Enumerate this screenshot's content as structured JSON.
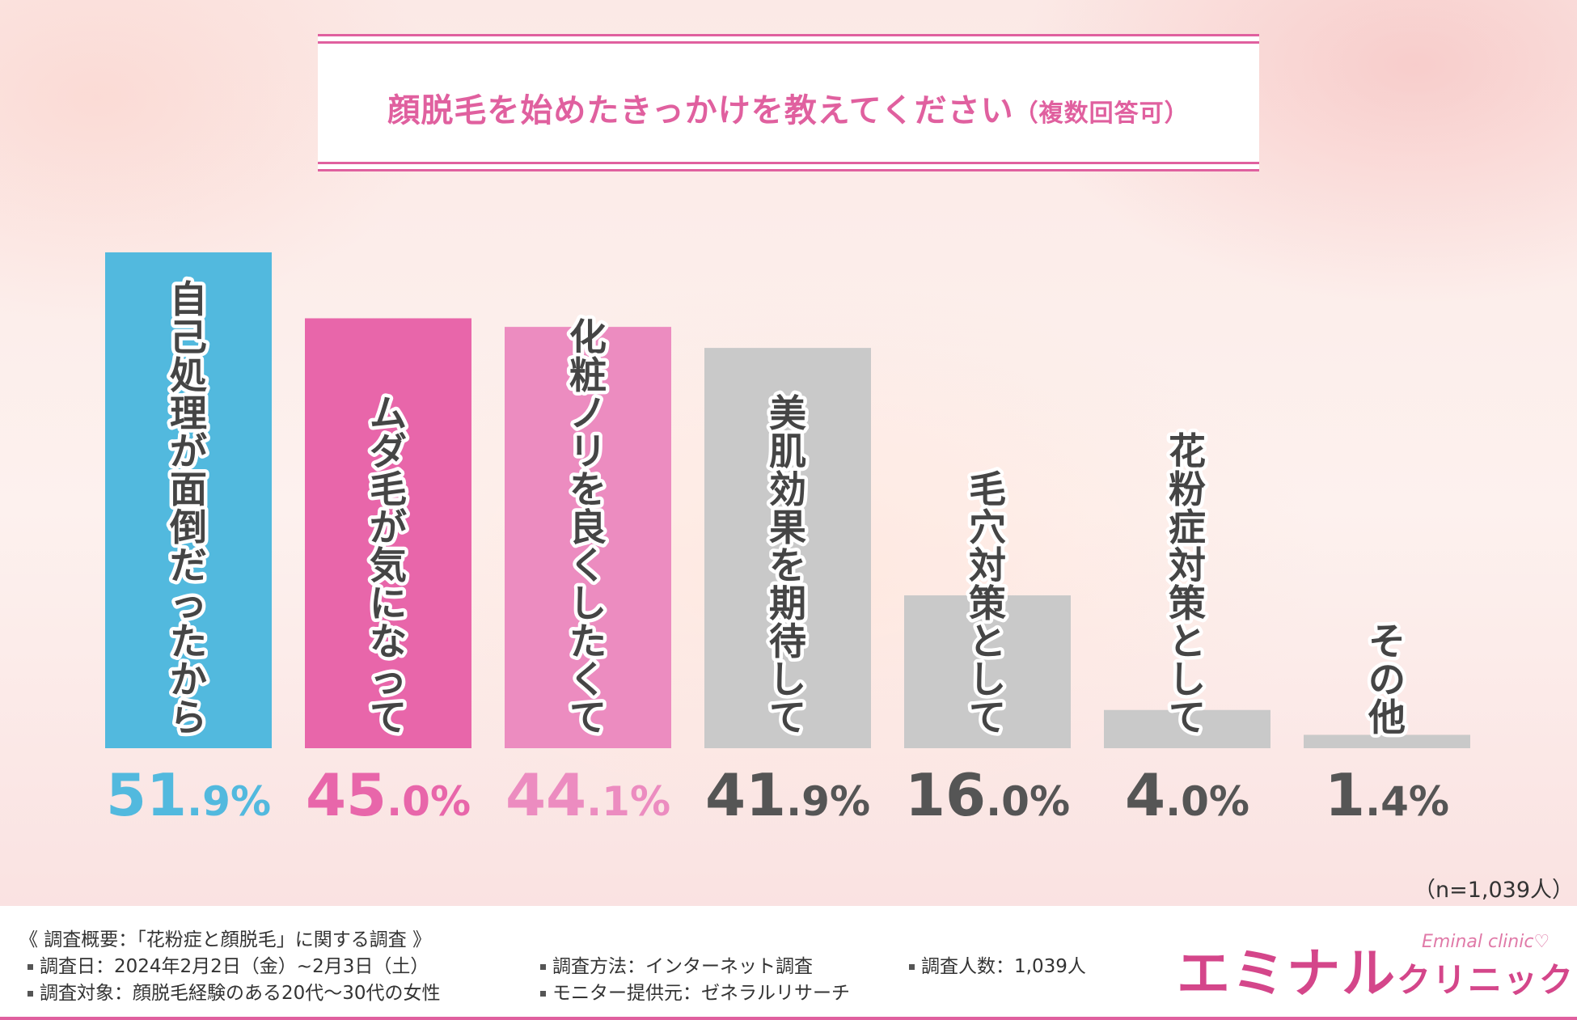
{
  "title": {
    "main": "顔脱毛を始めたきっかけを教えてください",
    "sub": "（複数回答可）"
  },
  "colors": {
    "accent": "#e0609f",
    "bar_blue": "#52b9de",
    "bar_pink": "#e866aa",
    "bar_light_pink": "#ec8cc0",
    "bar_gray": "#c9c9c9",
    "pct_gray": "#555555"
  },
  "chart_data": {
    "type": "bar",
    "categories": [
      "自己処理が面倒だったから",
      "ムダ毛が気になって",
      "化粧ノリを良くしたくて",
      "美肌効果を期待して",
      "毛穴対策として",
      "花粉症対策として",
      "その他"
    ],
    "values": [
      51.9,
      45.0,
      44.1,
      41.9,
      16.0,
      4.0,
      1.4
    ],
    "value_labels": [
      {
        "big": "51",
        "small": ".9%"
      },
      {
        "big": "45",
        "small": ".0%"
      },
      {
        "big": "44",
        "small": ".1%"
      },
      {
        "big": "41",
        "small": ".9%"
      },
      {
        "big": "16",
        "small": ".0%"
      },
      {
        "big": "4",
        "small": ".0%"
      },
      {
        "big": "1",
        "small": ".4%"
      }
    ],
    "bar_colors": [
      "#52b9de",
      "#e866aa",
      "#ec8cc0",
      "#c9c9c9",
      "#c9c9c9",
      "#c9c9c9",
      "#c9c9c9"
    ],
    "label_colors": [
      "#52b9de",
      "#e866aa",
      "#ec8cc0",
      "#555555",
      "#555555",
      "#555555",
      "#555555"
    ],
    "ylim": [
      0,
      51.9
    ],
    "grid": false,
    "legend": "none"
  },
  "n_note": "（n=1,039人）",
  "survey": {
    "heading": "《 調査概要：「花粉症と顔脱毛」に関する調査 》",
    "date": "調査日：2024年2月2日（金）~2月3日（土）",
    "target": "調査対象：顔脱毛経験のある20代〜30代の女性",
    "method": "調査方法：インターネット調査",
    "provider": "モニター提供元：ゼネラルリサーチ",
    "count": "調査人数：1,039人"
  },
  "logo": {
    "main": "エミナル",
    "sub": "クリニック",
    "en": "Eminal clinic♡"
  }
}
